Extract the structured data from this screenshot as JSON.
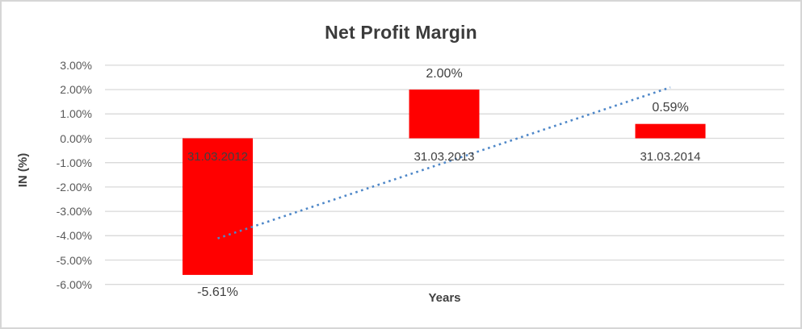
{
  "chart_data": {
    "type": "bar",
    "title": "Net Profit Margin",
    "xlabel": "Years",
    "ylabel": "IN (%)",
    "categories": [
      "31.03.2012",
      "31.03.2013",
      "31.03.2014"
    ],
    "series": [
      {
        "name": "Net Profit Margin",
        "values": [
          -5.61,
          2.0,
          0.59
        ]
      }
    ],
    "data_labels": [
      "-5.61%",
      "2.00%",
      "0.59%"
    ],
    "y_ticks": [
      {
        "label": "3.00%",
        "value": 3
      },
      {
        "label": "2.00%",
        "value": 2
      },
      {
        "label": "1.00%",
        "value": 1
      },
      {
        "label": "0.00%",
        "value": 0
      },
      {
        "label": "-1.00%",
        "value": -1
      },
      {
        "label": "-2.00%",
        "value": -2
      },
      {
        "label": "-3.00%",
        "value": -3
      },
      {
        "label": "-4.00%",
        "value": -4
      },
      {
        "label": "-5.00%",
        "value": -5
      },
      {
        "label": "-6.00%",
        "value": -6
      }
    ],
    "ylim": [
      -6,
      3
    ],
    "grid": true,
    "legend": "none",
    "trendline": {
      "type": "linear",
      "style": "dotted",
      "start_value": -4.11,
      "end_value": 2.09
    },
    "colors": {
      "bar": "#ff0000",
      "trendline": "#4e87c8",
      "gridline": "#d9d9d9",
      "tick_text": "#595959",
      "label_text": "#404040",
      "frame_border": "#d6d6d6"
    }
  }
}
